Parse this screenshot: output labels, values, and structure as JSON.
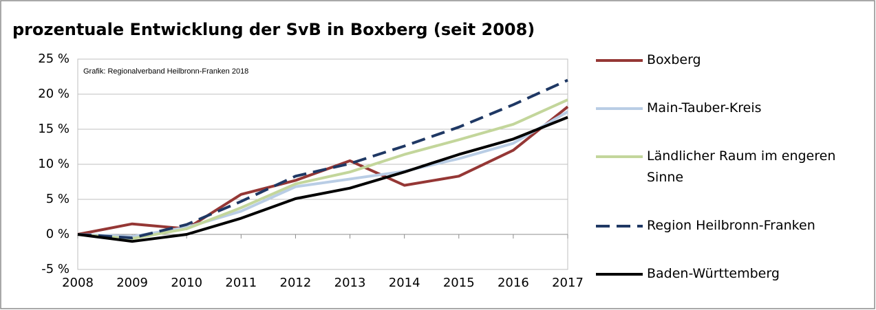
{
  "chart_data": {
    "type": "line",
    "title": "prozentuale Entwicklung der SvB in Boxberg (seit 2008)",
    "annotation": "Grafik: Regionalverband Heilbronn-Franken 2018",
    "categories": [
      "2008",
      "2009",
      "2010",
      "2011",
      "2012",
      "2013",
      "2014",
      "2015",
      "2016",
      "2017"
    ],
    "series": [
      {
        "name": "Boxberg",
        "color": "#953735",
        "values": [
          0,
          1.5,
          0.8,
          5.7,
          7.7,
          10.5,
          7.0,
          8.3,
          12.0,
          18.2
        ]
      },
      {
        "name": "Main-Tauber-Kreis",
        "color": "#b9cde5",
        "values": [
          0,
          -0.3,
          1.0,
          3.3,
          6.8,
          7.9,
          9.0,
          10.8,
          13.0,
          17.5
        ]
      },
      {
        "name": "Ländlicher Raum im engeren Sinne",
        "color": "#c3d69b",
        "values": [
          0,
          -0.6,
          0.8,
          3.8,
          7.2,
          8.9,
          11.4,
          13.5,
          15.7,
          19.2
        ]
      },
      {
        "name": "Region Heilbronn-Franken",
        "color": "#1f3864",
        "dashed": true,
        "values": [
          0,
          -0.5,
          1.4,
          4.7,
          8.3,
          10.1,
          12.6,
          15.3,
          18.5,
          22.0
        ]
      },
      {
        "name": "Baden-Württemberg",
        "color": "#000000",
        "values": [
          0,
          -1.0,
          0.0,
          2.3,
          5.1,
          6.6,
          8.9,
          11.4,
          13.6,
          16.7
        ]
      }
    ],
    "ylim": [
      -5,
      25
    ],
    "yticks": [
      {
        "value": -5,
        "label": "-5 %"
      },
      {
        "value": 0,
        "label": "0 %"
      },
      {
        "value": 5,
        "label": "5 %"
      },
      {
        "value": 10,
        "label": "10 %"
      },
      {
        "value": 15,
        "label": "15 %"
      },
      {
        "value": 20,
        "label": "20 %"
      },
      {
        "value": 25,
        "label": "25 %"
      }
    ],
    "grid": true,
    "legend": "right"
  }
}
